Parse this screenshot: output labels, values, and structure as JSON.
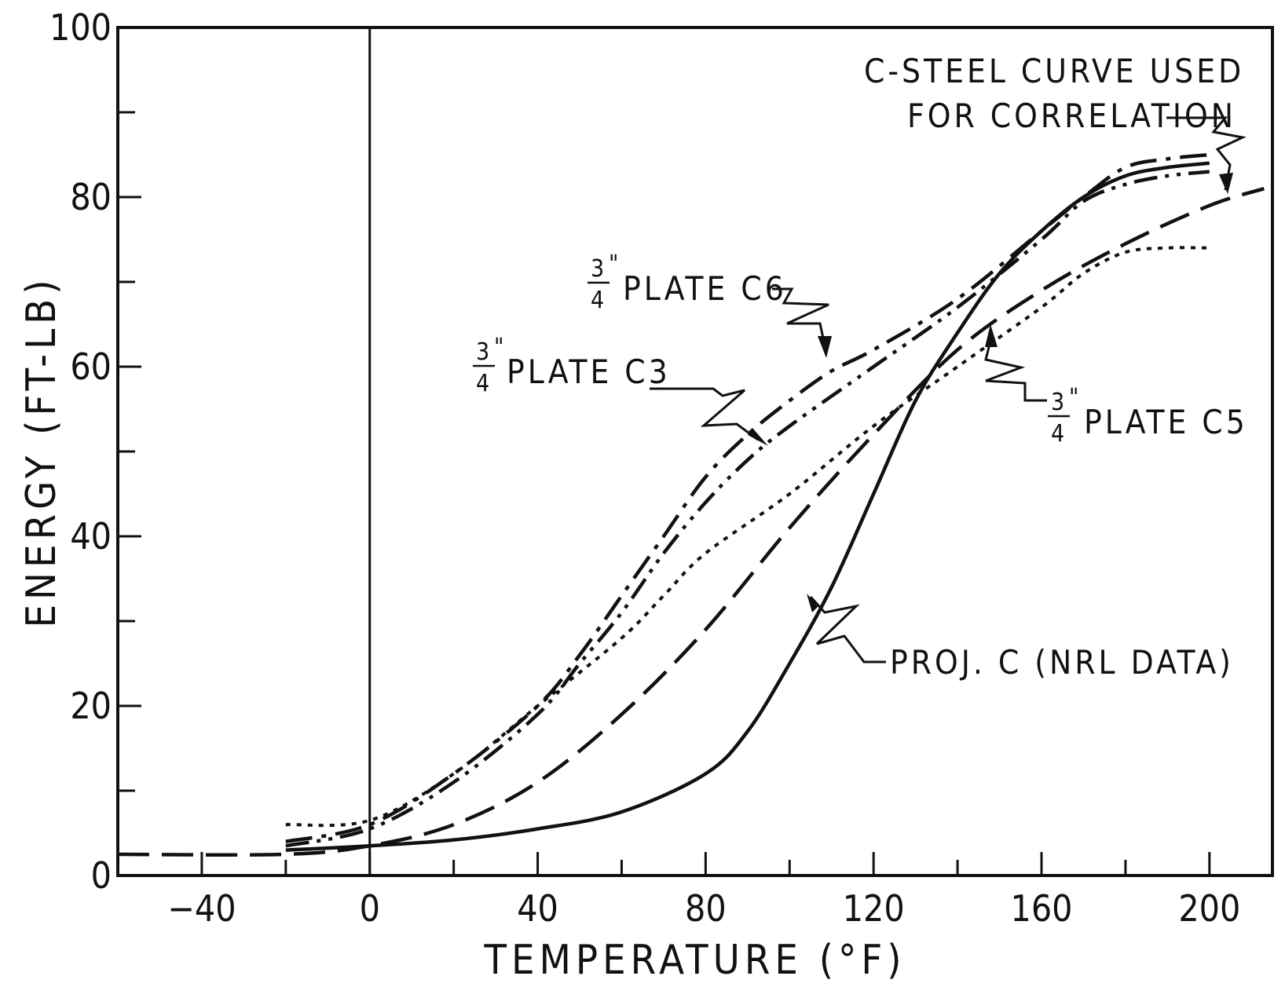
{
  "chart_data": {
    "type": "line",
    "xlabel": "TEMPERATURE (°F)",
    "ylabel": "ENERGY (FT-LB)",
    "xlim": [
      -60,
      215
    ],
    "ylim": [
      0,
      100
    ],
    "x_ticks": [
      -40,
      0,
      40,
      80,
      120,
      160,
      200
    ],
    "y_ticks": [
      0,
      20,
      40,
      60,
      80,
      100
    ],
    "x_minor_step": 20,
    "y_minor_step": 10,
    "grid": false,
    "vline_at_x": 0,
    "series": [
      {
        "name": "PROJ. C (NRL DATA)",
        "style": "solid",
        "x": [
          -20,
          0,
          20,
          40,
          60,
          80,
          90,
          100,
          110,
          120,
          130,
          140,
          150,
          160,
          170,
          180,
          190,
          200
        ],
        "y": [
          3,
          3.5,
          4.2,
          5.5,
          7.5,
          12,
          17,
          25,
          34,
          45,
          56,
          64,
          71,
          76,
          80,
          82.5,
          83.5,
          84
        ]
      },
      {
        "name": "3/4\" PLATE C6",
        "style": "dash-dot",
        "x": [
          -20,
          0,
          20,
          40,
          50,
          60,
          70,
          80,
          90,
          100,
          110,
          120,
          140,
          160,
          170,
          180,
          190,
          200
        ],
        "y": [
          4,
          6,
          12,
          20,
          26,
          33,
          40,
          47,
          52,
          56,
          59.5,
          62,
          68,
          76,
          80,
          83.5,
          84.5,
          85
        ]
      },
      {
        "name": "3/4\" PLATE C3",
        "style": "dash-dot-dot",
        "x": [
          -20,
          0,
          20,
          40,
          50,
          60,
          70,
          80,
          90,
          100,
          120,
          140,
          160,
          170,
          180,
          190,
          200
        ],
        "y": [
          3.5,
          5.5,
          11,
          19,
          25,
          31,
          38,
          44,
          49,
          53,
          60,
          67,
          75,
          79.5,
          81.5,
          82.5,
          83
        ]
      },
      {
        "name": "3/4\" PLATE C5",
        "style": "dotted",
        "x": [
          -20,
          0,
          20,
          40,
          60,
          70,
          80,
          100,
          120,
          140,
          160,
          170,
          180,
          190,
          200
        ],
        "y": [
          6,
          6.5,
          12,
          20,
          28,
          33,
          38,
          45,
          53,
          60,
          67,
          71,
          73.5,
          74,
          74
        ]
      },
      {
        "name": "C-STEEL CURVE USED FOR CORRELATION",
        "style": "long-dash",
        "x": [
          -60,
          -20,
          0,
          20,
          40,
          60,
          80,
          100,
          120,
          140,
          160,
          180,
          200,
          213
        ],
        "y": [
          2.5,
          2.5,
          3.5,
          6,
          11,
          19,
          29,
          41,
          52,
          62,
          69,
          74.5,
          79,
          81
        ]
      }
    ],
    "annotations": [
      {
        "lines": [
          "C-STEEL CURVE USED",
          "FOR CORRELATION"
        ],
        "points_to": "C-STEEL CURVE USED FOR CORRELATION"
      },
      {
        "fraction_num": "3",
        "fraction_den": "4",
        "inch_mark": "\"",
        "text": "PLATE C6",
        "points_to": "3/4\" PLATE C6"
      },
      {
        "fraction_num": "3",
        "fraction_den": "4",
        "inch_mark": "\"",
        "text": "PLATE C3",
        "points_to": "3/4\" PLATE C3"
      },
      {
        "fraction_num": "3",
        "fraction_den": "4",
        "inch_mark": "\"",
        "text": "PLATE C5",
        "points_to": "3/4\" PLATE C5"
      },
      {
        "text": "PROJ. C (NRL DATA)",
        "points_to": "PROJ. C (NRL DATA)"
      }
    ]
  }
}
